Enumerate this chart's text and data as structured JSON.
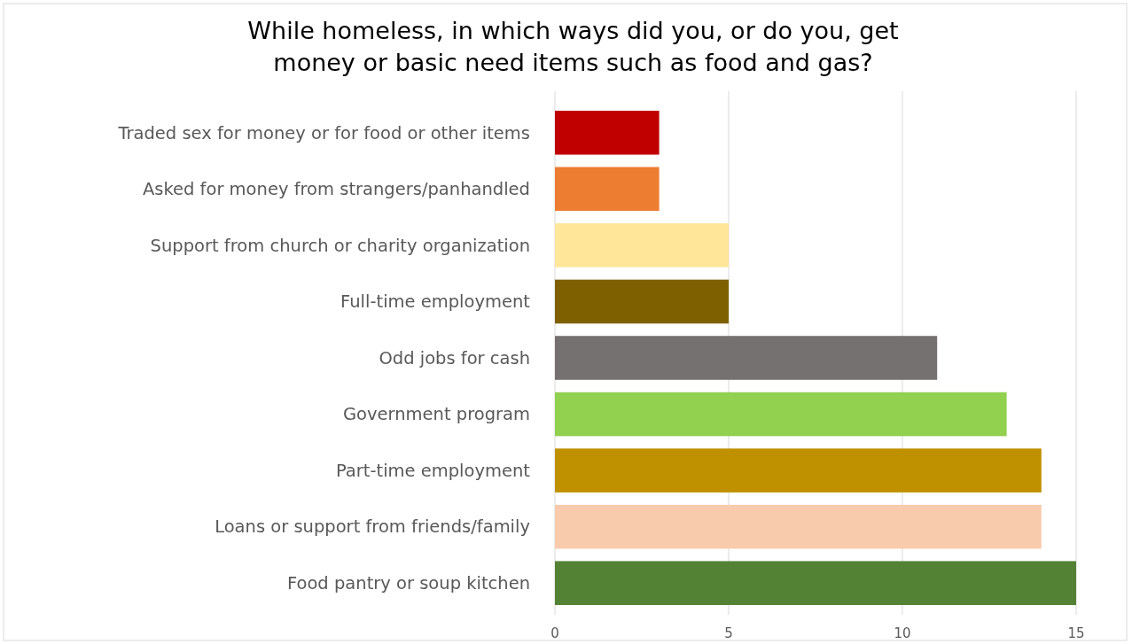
{
  "chart_data": {
    "type": "bar",
    "orientation": "horizontal",
    "title": "While homeless, in which ways did you, or do you, get\nmoney or basic need items such as food and gas?",
    "categories": [
      "Traded sex for money or for food or other items",
      "Asked for money from strangers/panhandled",
      "Support from church or charity organization",
      "Full-time employment",
      "Odd jobs for cash",
      "Government program",
      "Part-time employment",
      "Loans or support from friends/family",
      "Food pantry or soup kitchen"
    ],
    "values": [
      3,
      3,
      5,
      5,
      11,
      13,
      14,
      14,
      15
    ],
    "colors": [
      "#c00000",
      "#ed7d31",
      "#ffe699",
      "#7f6000",
      "#767171",
      "#92d050",
      "#bf9000",
      "#f8cbad",
      "#548235"
    ],
    "xlim": [
      0,
      15
    ],
    "xticks": [
      0,
      5,
      10,
      15
    ],
    "grid": "x"
  }
}
